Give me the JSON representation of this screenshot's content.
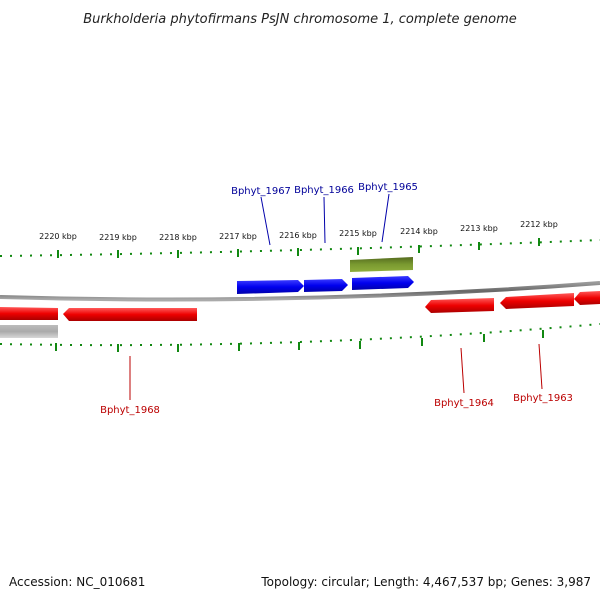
{
  "title": "Burkholderia phytofirmans PsJN chromosome 1, complete genome",
  "scale_labels": [
    "2220 kbp",
    "2219 kbp",
    "2218 kbp",
    "2217 kbp",
    "2216 kbp",
    "2215 kbp",
    "2214 kbp",
    "2213 kbp",
    "2212 kbp"
  ],
  "gene_labels": {
    "bphyt_1967": "Bphyt_1967",
    "bphyt_1966": "Bphyt_1966",
    "bphyt_1965": "Bphyt_1965",
    "bphyt_1968": "Bphyt_1968",
    "bphyt_1964": "Bphyt_1964",
    "bphyt_1963": "Bphyt_1963"
  },
  "footer": {
    "accession": "Accession: NC_010681",
    "summary": "Topology: circular; Length: 4,467,537 bp; Genes: 3,987"
  },
  "colors": {
    "forward_gene": "#0000ee",
    "reverse_gene": "#ee0000",
    "rna_gene": "#6b8e23",
    "pseudo_gene": "#aaaaaa",
    "backbone": "#777777",
    "tick": "#118811",
    "forward_label": "#000099",
    "reverse_label": "#bb0000"
  }
}
